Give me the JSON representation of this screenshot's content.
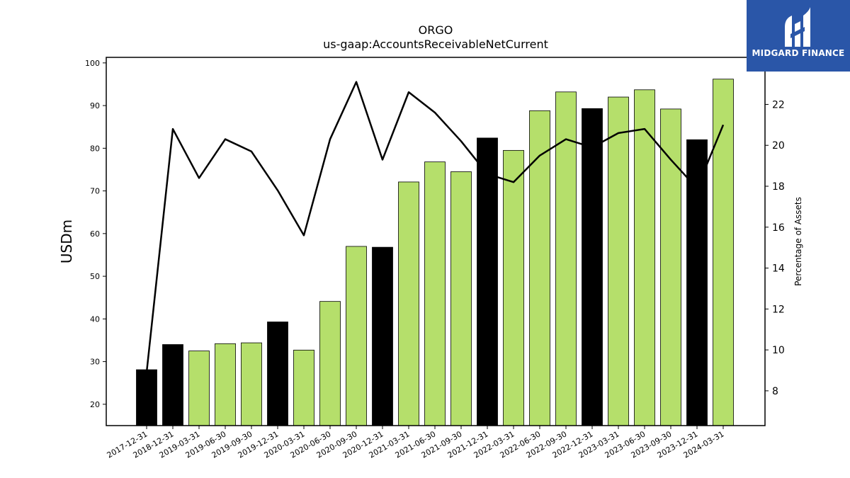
{
  "chart_data": {
    "type": "bar",
    "title": "ORGO",
    "subtitle": "us-gaap:AccountsReceivableNetCurrent",
    "ylabel": "USDm",
    "y2label": "Percentage of Assets",
    "ylim": [
      15,
      101.3
    ],
    "y2lim": [
      6.3,
      24.3
    ],
    "yticks": [
      20,
      30,
      40,
      50,
      60,
      70,
      80,
      90,
      100
    ],
    "y2ticks": [
      8,
      10,
      12,
      14,
      16,
      18,
      20,
      22
    ],
    "categories": [
      "2017-12-31",
      "2018-12-31",
      "2019-03-31",
      "2019-06-30",
      "2019-09-30",
      "2019-12-31",
      "2020-03-31",
      "2020-06-30",
      "2020-09-30",
      "2020-12-31",
      "2021-03-31",
      "2021-06-30",
      "2021-09-30",
      "2021-12-31",
      "2022-03-31",
      "2022-06-30",
      "2022-09-30",
      "2022-12-31",
      "2023-03-31",
      "2023-06-30",
      "2023-09-30",
      "2023-12-31",
      "2024-03-31"
    ],
    "series": [
      {
        "type": "bar",
        "values": [
          28.1,
          34.0,
          32.5,
          34.2,
          34.4,
          39.3,
          32.7,
          44.1,
          57.0,
          56.8,
          72.1,
          76.8,
          74.5,
          82.4,
          79.5,
          88.8,
          93.2,
          89.3,
          92.0,
          93.7,
          89.2,
          82.0,
          96.2
        ],
        "colors": [
          "#000000",
          "#000000",
          "#b5df6b",
          "#b5df6b",
          "#b5df6b",
          "#000000",
          "#b5df6b",
          "#b5df6b",
          "#b5df6b",
          "#000000",
          "#b5df6b",
          "#b5df6b",
          "#b5df6b",
          "#000000",
          "#b5df6b",
          "#b5df6b",
          "#b5df6b",
          "#000000",
          "#b5df6b",
          "#b5df6b",
          "#b5df6b",
          "#000000",
          "#b5df6b"
        ]
      },
      {
        "type": "line",
        "axis": "right",
        "color": "#000000",
        "values": [
          8.9,
          20.8,
          18.4,
          20.3,
          19.7,
          17.8,
          15.6,
          20.3,
          23.1,
          19.3,
          22.6,
          21.6,
          20.2,
          18.6,
          18.2,
          19.5,
          20.3,
          19.9,
          20.6,
          20.8,
          19.3,
          17.9,
          21.0
        ]
      }
    ],
    "grid": false
  },
  "logo": {
    "text": "MIDGARD FINANCE",
    "bg_color": "#2a56a8"
  }
}
